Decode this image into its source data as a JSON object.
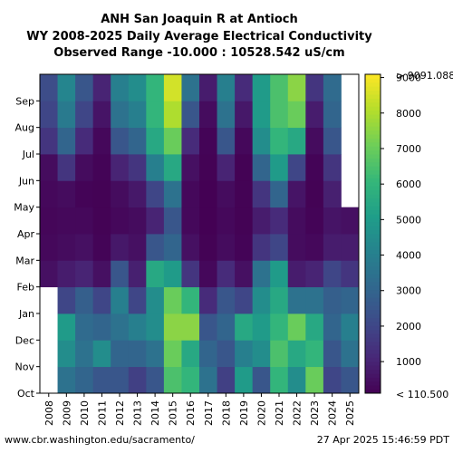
{
  "chart_data": {
    "type": "heatmap",
    "title_lines": [
      "ANH San Joaquin R at Antioch",
      "WY 2008-2025 Daily Average Electrical Conductivity",
      "Observed Range -10.000 : 10528.542 uS/cm"
    ],
    "x_categories": [
      "2008",
      "2009",
      "2010",
      "2011",
      "2012",
      "2013",
      "2014",
      "2015",
      "2016",
      "2017",
      "2018",
      "2019",
      "2020",
      "2021",
      "2022",
      "2023",
      "2024",
      "2025"
    ],
    "y_months": [
      "Oct",
      "Nov",
      "Dec",
      "Jan",
      "Feb",
      "Mar",
      "Apr",
      "May",
      "Jun",
      "Jul",
      "Aug",
      "Sep"
    ],
    "colorbar": {
      "colormap": "viridis",
      "range": [
        110.5,
        9091.088
      ],
      "ticks": [
        1000,
        2000,
        3000,
        4000,
        5000,
        6000,
        7000,
        8000,
        9000
      ],
      "low_label": "< 110.500",
      "high_label": "> 9091.088"
    },
    "monthly_values": [
      [
        null,
        null,
        null,
        null,
        500,
        300,
        250,
        300,
        400,
        1500,
        2000,
        2200
      ],
      [
        3500,
        4500,
        5000,
        2000,
        800,
        400,
        300,
        400,
        1500,
        3000,
        3800,
        4200
      ],
      [
        3000,
        3500,
        3200,
        2800,
        1000,
        500,
        300,
        200,
        400,
        1200,
        2000,
        2500
      ],
      [
        2500,
        4500,
        3000,
        2000,
        500,
        200,
        150,
        150,
        200,
        300,
        600,
        1000
      ],
      [
        2500,
        3000,
        3500,
        4000,
        2500,
        700,
        300,
        400,
        1000,
        2500,
        3500,
        4000
      ],
      [
        1800,
        3000,
        4000,
        2000,
        900,
        500,
        400,
        700,
        1500,
        3000,
        4000,
        4500
      ],
      [
        2500,
        3500,
        4500,
        4500,
        5500,
        2500,
        1000,
        2000,
        4000,
        5500,
        6000,
        6000
      ],
      [
        6500,
        7000,
        7500,
        7000,
        5000,
        3000,
        2500,
        3500,
        5500,
        7000,
        8000,
        8500
      ],
      [
        6000,
        5500,
        7500,
        6000,
        1500,
        500,
        300,
        300,
        500,
        1200,
        2500,
        3500
      ],
      [
        3500,
        3000,
        2500,
        1200,
        300,
        150,
        120,
        120,
        150,
        200,
        400,
        800
      ],
      [
        1800,
        2500,
        3000,
        2500,
        1200,
        400,
        300,
        400,
        1000,
        2500,
        3500,
        4000
      ],
      [
        5000,
        4000,
        5500,
        2000,
        500,
        200,
        150,
        150,
        150,
        300,
        700,
        1200
      ],
      [
        2500,
        4500,
        5000,
        4500,
        3500,
        1500,
        800,
        1500,
        3000,
        4500,
        5000,
        5000
      ],
      [
        6000,
        6500,
        6000,
        5500,
        5000,
        2000,
        1200,
        3000,
        5000,
        6000,
        6500,
        6500
      ],
      [
        4500,
        5500,
        7000,
        3500,
        800,
        400,
        400,
        600,
        2000,
        5500,
        7000,
        7500
      ],
      [
        7000,
        6000,
        5500,
        3500,
        1000,
        300,
        200,
        150,
        200,
        400,
        800,
        1500
      ],
      [
        2000,
        2500,
        3000,
        2800,
        2000,
        800,
        600,
        900,
        1500,
        2500,
        3000,
        3200
      ],
      [
        2500,
        3500,
        4000,
        3000,
        1500,
        800,
        500,
        null,
        null,
        null,
        null,
        null
      ]
    ]
  },
  "footer": {
    "url": "www.cbr.washington.edu/sacramento/",
    "timestamp": "27 Apr 2025 15:46:59 PDT"
  }
}
